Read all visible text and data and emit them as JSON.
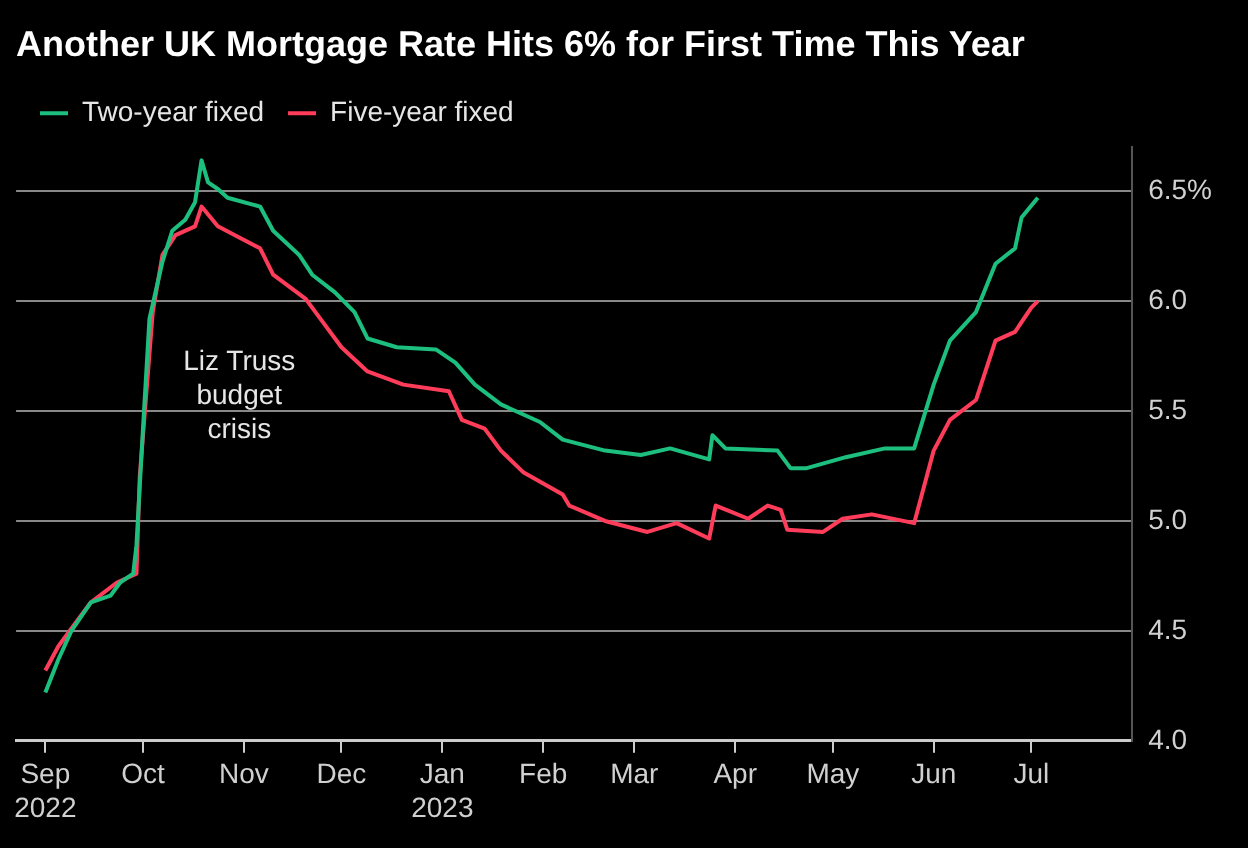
{
  "chart_data": {
    "type": "line",
    "title": "Another UK Mortgage Rate Hits 6% for First Time This Year",
    "legend": "top left",
    "grid": "y",
    "line_style": "solid",
    "marker": "none",
    "xlim": [
      "2022-08-23",
      "2023-08-01"
    ],
    "xticks": [
      {
        "value": "2022-09-01",
        "label": "Sep\n2022"
      },
      {
        "value": "2022-10-01",
        "label": "Oct"
      },
      {
        "value": "2022-11-01",
        "label": "Nov"
      },
      {
        "value": "2022-12-01",
        "label": "Dec"
      },
      {
        "value": "2023-01-01",
        "label": "Jan\n2023"
      },
      {
        "value": "2023-02-01",
        "label": "Feb"
      },
      {
        "value": "2023-03-01",
        "label": "Mar"
      },
      {
        "value": "2023-04-01",
        "label": "Apr"
      },
      {
        "value": "2023-05-01",
        "label": "May"
      },
      {
        "value": "2023-06-01",
        "label": "Jun"
      },
      {
        "value": "2023-07-01",
        "label": "Jul"
      }
    ],
    "ylim": [
      4.0,
      6.7
    ],
    "yticks": [
      {
        "value": 4.0,
        "label": "4.0"
      },
      {
        "value": 4.5,
        "label": "4.5"
      },
      {
        "value": 5.0,
        "label": "5.0"
      },
      {
        "value": 5.5,
        "label": "5.5"
      },
      {
        "value": 6.0,
        "label": "6.0"
      },
      {
        "value": 6.5,
        "label": "6.5%"
      }
    ],
    "annotations": [
      "Liz Truss budget crisis"
    ],
    "series": [
      {
        "name": "Two-year fixed",
        "color": "#1dbf7f",
        "x": [
          "2022-09-01",
          "2022-09-05",
          "2022-09-09",
          "2022-09-15",
          "2022-09-21",
          "2022-09-24",
          "2022-09-28",
          "2022-09-29",
          "2022-10-01",
          "2022-10-03",
          "2022-10-07",
          "2022-10-10",
          "2022-10-14",
          "2022-10-17",
          "2022-10-19",
          "2022-10-21",
          "2022-10-24",
          "2022-10-27",
          "2022-11-06",
          "2022-11-10",
          "2022-11-18",
          "2022-11-22",
          "2022-11-29",
          "2022-12-05",
          "2022-12-09",
          "2022-12-18",
          "2022-12-30",
          "2023-01-05",
          "2023-01-11",
          "2023-01-19",
          "2023-01-31",
          "2023-02-07",
          "2023-02-20",
          "2023-03-03",
          "2023-03-12",
          "2023-03-24",
          "2023-03-25",
          "2023-03-29",
          "2023-04-14",
          "2023-04-18",
          "2023-04-23",
          "2023-05-05",
          "2023-05-17",
          "2023-05-26",
          "2023-06-01",
          "2023-06-06",
          "2023-06-14",
          "2023-06-20",
          "2023-06-26",
          "2023-06-28",
          "2023-07-03"
        ],
        "values": [
          4.22,
          4.37,
          4.5,
          4.63,
          4.66,
          4.72,
          4.76,
          4.89,
          5.42,
          5.92,
          6.18,
          6.32,
          6.37,
          6.45,
          6.64,
          6.54,
          6.51,
          6.47,
          6.43,
          6.32,
          6.21,
          6.12,
          6.04,
          5.95,
          5.83,
          5.79,
          5.78,
          5.72,
          5.62,
          5.53,
          5.45,
          5.37,
          5.32,
          5.3,
          5.33,
          5.28,
          5.39,
          5.33,
          5.32,
          5.24,
          5.24,
          5.29,
          5.33,
          5.33,
          5.62,
          5.82,
          5.95,
          6.17,
          6.24,
          6.38,
          6.47
        ]
      },
      {
        "name": "Five-year fixed",
        "color": "#ff3d5a",
        "x": [
          "2022-09-01",
          "2022-09-05",
          "2022-09-15",
          "2022-09-23",
          "2022-09-29",
          "2022-09-30",
          "2022-10-04",
          "2022-10-07",
          "2022-10-11",
          "2022-10-17",
          "2022-10-19",
          "2022-10-24",
          "2022-11-06",
          "2022-11-10",
          "2022-11-20",
          "2022-11-25",
          "2022-12-01",
          "2022-12-09",
          "2022-12-20",
          "2023-01-03",
          "2023-01-07",
          "2023-01-14",
          "2023-01-19",
          "2023-01-26",
          "2023-02-07",
          "2023-02-09",
          "2023-02-20",
          "2023-03-05",
          "2023-03-14",
          "2023-03-24",
          "2023-03-26",
          "2023-04-05",
          "2023-04-11",
          "2023-04-15",
          "2023-04-17",
          "2023-04-28",
          "2023-05-04",
          "2023-05-13",
          "2023-05-26",
          "2023-06-01",
          "2023-06-06",
          "2023-06-14",
          "2023-06-20",
          "2023-06-26",
          "2023-07-01",
          "2023-07-03"
        ],
        "values": [
          4.32,
          4.43,
          4.63,
          4.72,
          4.76,
          5.2,
          5.95,
          6.21,
          6.3,
          6.34,
          6.43,
          6.34,
          6.24,
          6.12,
          6.01,
          5.91,
          5.79,
          5.68,
          5.62,
          5.59,
          5.46,
          5.42,
          5.32,
          5.22,
          5.12,
          5.07,
          5.0,
          4.95,
          4.99,
          4.92,
          5.07,
          5.01,
          5.07,
          5.05,
          4.96,
          4.95,
          5.01,
          5.03,
          4.99,
          5.32,
          5.46,
          5.55,
          5.82,
          5.86,
          5.97,
          6.0
        ]
      }
    ]
  }
}
